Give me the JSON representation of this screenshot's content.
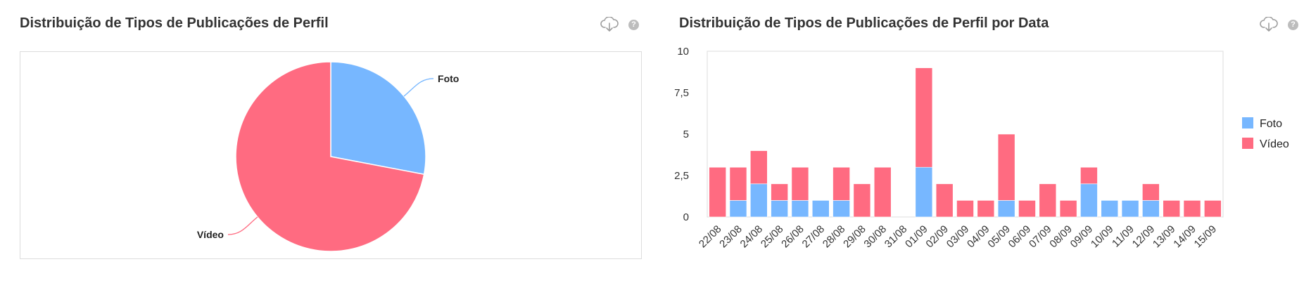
{
  "left_panel": {
    "title": "Distribuição de Tipos de Publicações de Perfil",
    "download_icon": "cloud-download-icon",
    "help_icon": "question-icon",
    "help_glyph": "?"
  },
  "right_panel": {
    "title": "Distribuição de Tipos de Publicações de Perfil por Data",
    "download_icon": "cloud-download-icon",
    "help_icon": "question-icon",
    "help_glyph": "?"
  },
  "colors": {
    "foto": "#77b7ff",
    "video": "#ff6b81"
  },
  "chart_data": [
    {
      "type": "pie",
      "slices": [
        {
          "label": "Foto",
          "value": 28,
          "color": "#77b7ff"
        },
        {
          "label": "Vídeo",
          "value": 72,
          "color": "#ff6b81"
        }
      ]
    },
    {
      "type": "bar",
      "stacked": true,
      "categories": [
        "22/08",
        "23/08",
        "24/08",
        "25/08",
        "26/08",
        "27/08",
        "28/08",
        "29/08",
        "30/08",
        "31/08",
        "01/09",
        "02/09",
        "03/09",
        "04/09",
        "05/09",
        "06/09",
        "07/09",
        "08/09",
        "09/09",
        "10/09",
        "11/09",
        "12/09",
        "13/09",
        "14/09",
        "15/09"
      ],
      "series": [
        {
          "name": "Foto",
          "color": "#77b7ff",
          "values": [
            0,
            1,
            2,
            1,
            1,
            1,
            1,
            0,
            0,
            0,
            3,
            0,
            0,
            0,
            1,
            0,
            0,
            0,
            2,
            1,
            1,
            1,
            0,
            0,
            0
          ]
        },
        {
          "name": "Vídeo",
          "color": "#ff6b81",
          "values": [
            3,
            2,
            2,
            1,
            2,
            0,
            2,
            2,
            3,
            0,
            6,
            2,
            1,
            1,
            4,
            1,
            2,
            1,
            1,
            0,
            0,
            1,
            1,
            1,
            1
          ]
        }
      ],
      "ylim": [
        0,
        10
      ],
      "yticks": [
        "0",
        "2,5",
        "5",
        "7,5",
        "10"
      ],
      "legend_position": "right"
    }
  ]
}
